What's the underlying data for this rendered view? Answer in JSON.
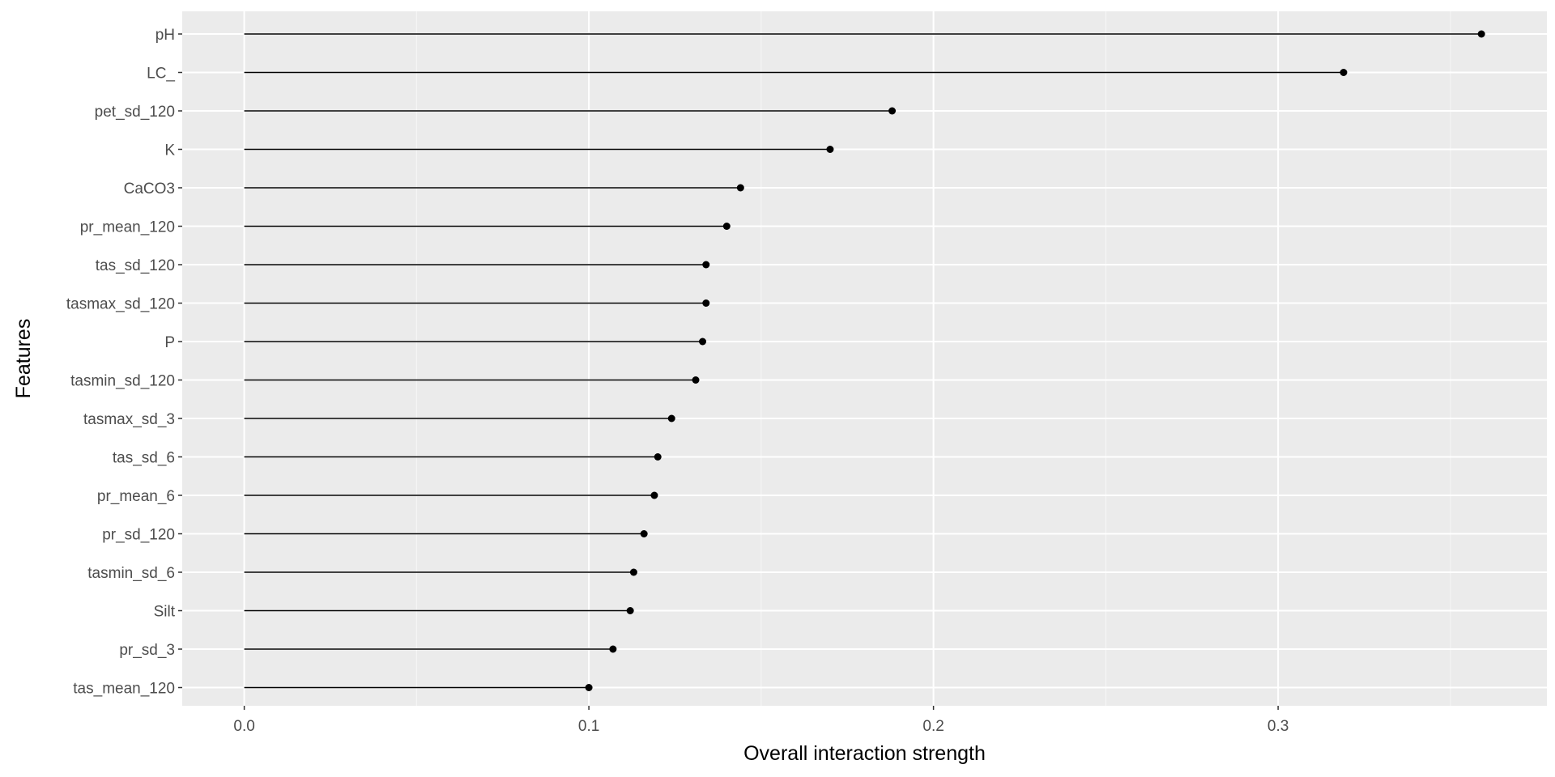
{
  "chart_data": {
    "type": "lollipop",
    "xlabel": "Overall interaction strength",
    "ylabel": "Features",
    "xlim": [
      -0.018,
      0.378
    ],
    "x_ticks": [
      0.0,
      0.1,
      0.2,
      0.3
    ],
    "x_tick_labels": [
      "0.0",
      "0.1",
      "0.2",
      "0.3"
    ],
    "x_minor_ticks": [
      0.05,
      0.15,
      0.25,
      0.35
    ],
    "grid": true,
    "categories": [
      "pH",
      "LC_",
      "pet_sd_120",
      "K",
      "CaCO3",
      "pr_mean_120",
      "tas_sd_120",
      "tasmax_sd_120",
      "P",
      "tasmin_sd_120",
      "tasmax_sd_3",
      "tas_sd_6",
      "pr_mean_6",
      "pr_sd_120",
      "tasmin_sd_6",
      "Silt",
      "pr_sd_3",
      "tas_mean_120"
    ],
    "values": [
      0.359,
      0.319,
      0.188,
      0.17,
      0.144,
      0.14,
      0.134,
      0.134,
      0.133,
      0.131,
      0.124,
      0.12,
      0.119,
      0.116,
      0.113,
      0.112,
      0.107,
      0.1
    ],
    "colors": {
      "panel_bg": "#ebebeb",
      "grid_major": "#ffffff",
      "grid_minor": "#f7f7f7",
      "mark": "#000000",
      "tick_text": "#4d4d4d",
      "tick_line": "#333333"
    }
  }
}
